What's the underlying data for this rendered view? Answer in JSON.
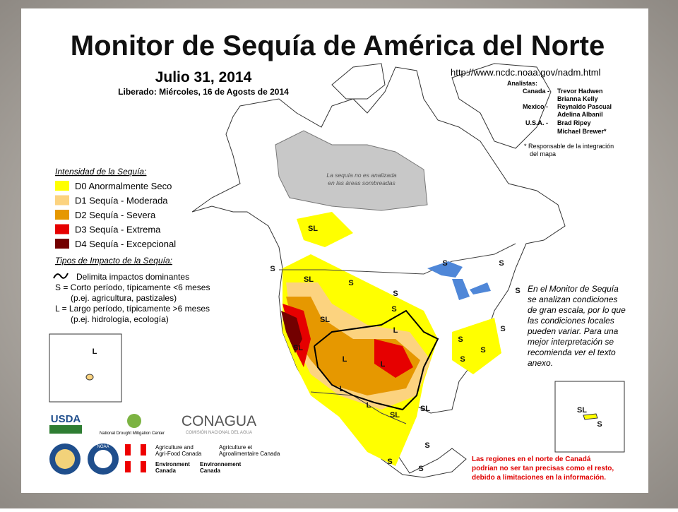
{
  "header": {
    "title": "Monitor de Sequía de América del Norte",
    "date": "Julio 31, 2014",
    "released": "Liberado: Miércoles, 16 de Agosts de 2014",
    "url": "http://www.ncdc.noaa.gov/nadm.html"
  },
  "analysts": {
    "title": "Analistas:",
    "groups": [
      {
        "country": "Canada -",
        "names": [
          "Trevor Hadwen",
          "Brianna Kelly"
        ]
      },
      {
        "country": "Mexico -",
        "names": [
          "Reynaldo Pascual",
          "Adelina Albanil"
        ]
      },
      {
        "country": "U.S.A. -",
        "names": [
          "Brad Ripey",
          "Michael Brewer*"
        ]
      }
    ],
    "footnote": [
      "* Responsable de la integración",
      "del mapa"
    ]
  },
  "legend": {
    "title": "Intensidad de la Sequía:",
    "items": [
      {
        "label": "D0 Anormalmente Seco",
        "color": "#ffff00"
      },
      {
        "label": "D1 Sequía - Moderada",
        "color": "#fcd37f"
      },
      {
        "label": "D2 Sequía - Severa",
        "color": "#e69800"
      },
      {
        "label": "D3 Sequía - Extrema",
        "color": "#e60000"
      },
      {
        "label": "D4 Sequía - Excepcional",
        "color": "#730000"
      }
    ]
  },
  "impacts": {
    "title": "Tipos de Impacto de la Sequía:",
    "lines": [
      "Delimita impactos dominantes",
      "S = Corto período, típicamente <6 meses",
      "(p.ej. agricultura, pastizales)",
      "L = Largo período, típicamente >6 meses",
      "(p.ej. hidrología, ecología)"
    ]
  },
  "map": {
    "shaded_note": [
      "La sequía no es analizada",
      "en las áreas sombreadas"
    ],
    "labels": [
      "SL",
      "S",
      "SL",
      "S",
      "S",
      "S",
      "SL",
      "L",
      "SL",
      "L",
      "L",
      "L",
      "L",
      "SL",
      "SL",
      "S",
      "S",
      "S",
      "S",
      "S",
      "S",
      "S",
      "S",
      "S",
      "S",
      "L",
      "SL",
      "S"
    ]
  },
  "notes": {
    "scale_note": [
      "En el Monitor de Sequía",
      "se analizan condiciones",
      "de gran escala, por lo que",
      "las condiciones locales",
      "pueden variar.  Para una",
      "mejor interpretación se",
      "recomienda ver el texto",
      "anexo."
    ],
    "canada_note": [
      "Las regiones en el norte de Canadá",
      "podrían no ser tan precisas como el resto,",
      "debido a limitaciones en la información."
    ]
  },
  "logos": {
    "usda": "USDA",
    "ndmc": "National Drought Mitigation Center",
    "conagua": "CONAGUA",
    "conagua_sub": "COMISIÓN NACIONAL DEL AGUA",
    "noaa": "NOAA",
    "agri_en": [
      "Agriculture and",
      "Agri-Food Canada"
    ],
    "agri_fr": [
      "Agriculture et",
      "Agroalimentaire Canada"
    ],
    "env_en": [
      "Environment",
      "Canada"
    ],
    "env_fr": [
      "Environnement",
      "Canada"
    ]
  }
}
